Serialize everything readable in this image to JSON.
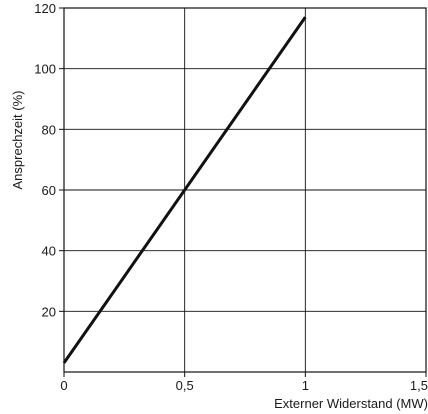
{
  "chart_data": {
    "type": "line",
    "xlabel": "Externer Widerstand (MW)",
    "ylabel": "Ansprechzeit (%)",
    "xlim": [
      0,
      1.5
    ],
    "ylim": [
      0,
      120
    ],
    "x_ticks": [
      0,
      0.5,
      1,
      1.5
    ],
    "x_tick_labels": [
      "0",
      "0,5",
      "1",
      "1,5"
    ],
    "y_ticks": [
      20,
      40,
      60,
      80,
      100,
      120
    ],
    "y_tick_labels": [
      "20",
      "40",
      "60",
      "80",
      "100",
      "120"
    ],
    "grid": true,
    "series": [
      {
        "x": [
          0,
          1
        ],
        "y": [
          3,
          117
        ],
        "color": "#111111"
      }
    ]
  }
}
